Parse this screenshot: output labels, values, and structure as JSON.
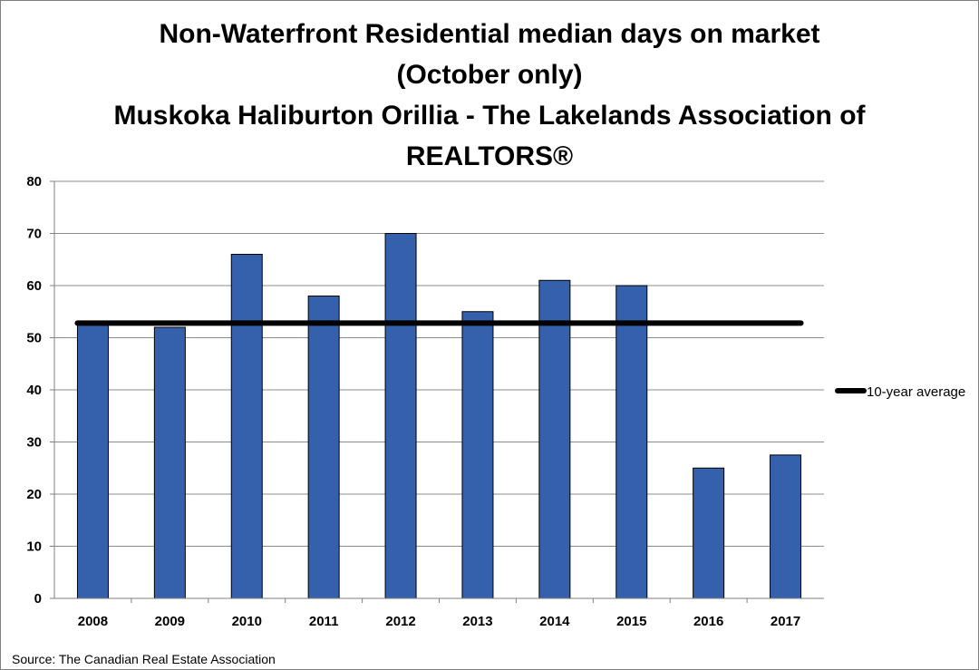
{
  "chart_data": {
    "type": "bar",
    "title_lines": [
      "Non-Waterfront Residential median days on market",
      "(October only)",
      "Muskoka Haliburton Orillia - The Lakelands Association of",
      "REALTORS®"
    ],
    "categories": [
      "2008",
      "2009",
      "2010",
      "2011",
      "2012",
      "2013",
      "2014",
      "2015",
      "2016",
      "2017"
    ],
    "values": [
      53,
      52,
      66,
      58,
      70,
      55,
      61,
      60,
      25,
      27.5
    ],
    "average": {
      "name": "10-year average",
      "value": 52.8
    },
    "ylim": [
      0,
      80
    ],
    "yticks": [
      "0",
      "10",
      "20",
      "30",
      "40",
      "50",
      "60",
      "70",
      "80"
    ],
    "grid": true,
    "legend_position": "right",
    "bar_color": "#3561ac",
    "line_color": "#000000"
  },
  "source": "Source: The Canadian Real Estate Association"
}
